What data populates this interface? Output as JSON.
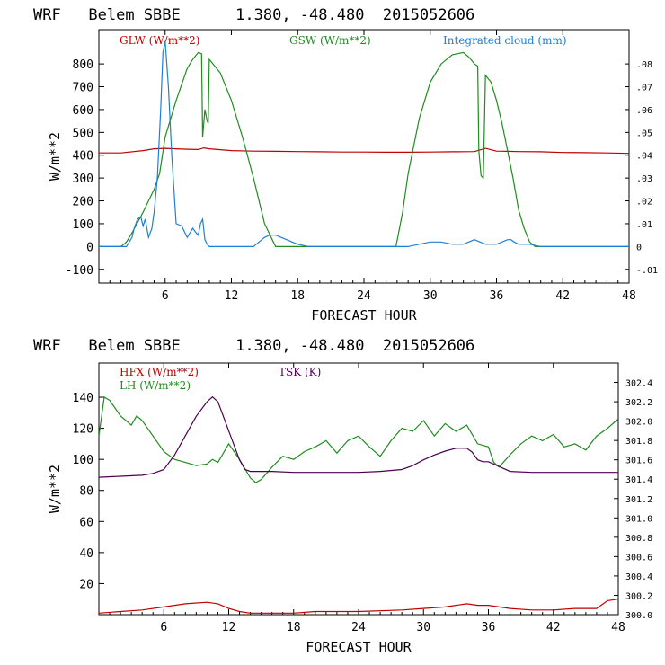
{
  "chart_data": [
    {
      "type": "line",
      "title": "WRF   Belem SBBE      1.380, -48.480  2015052606",
      "xlabel": "FORECAST HOUR",
      "ylabel": "W/m**2",
      "xlim": [
        0,
        48
      ],
      "ylim": [
        -160,
        950
      ],
      "x_ticks": [
        "6",
        "12",
        "18",
        "24",
        "30",
        "36",
        "42",
        "48"
      ],
      "y_ticks": [
        "-100",
        "0",
        "100",
        "200",
        "300",
        "400",
        "500",
        "600",
        "700",
        "800"
      ],
      "y2_ticks": [
        "-.01",
        "0",
        ".01",
        ".02",
        ".03",
        ".04",
        ".05",
        ".06",
        ".07",
        ".08"
      ],
      "y2lim": [
        -0.016,
        0.095
      ],
      "grid": false,
      "legend": "top",
      "series": [
        {
          "name": "GLW (W/m**2)",
          "color": "#c00000",
          "axis": "left",
          "x": [
            0,
            2,
            4,
            5,
            6,
            7,
            8,
            9,
            9.5,
            10,
            11,
            12,
            14,
            16,
            18,
            20,
            22,
            24,
            26,
            28,
            30,
            32,
            34,
            35,
            36,
            37,
            38,
            40,
            42,
            44,
            46,
            48
          ],
          "y": [
            410,
            410,
            420,
            428,
            430,
            428,
            426,
            425,
            432,
            428,
            424,
            420,
            418,
            417,
            416,
            415,
            414,
            414,
            413,
            413,
            414,
            415,
            416,
            430,
            418,
            417,
            416,
            415,
            412,
            411,
            410,
            408
          ]
        },
        {
          "name": "GSW (W/m**2)",
          "color": "#1e8c1e",
          "axis": "left",
          "x": [
            0,
            2,
            2.5,
            3,
            4,
            4.5,
            5,
            5.5,
            6,
            7,
            8,
            8.5,
            9,
            9.3,
            9.4,
            9.6,
            9.8,
            9.9,
            10,
            11,
            12,
            13,
            14,
            15,
            16,
            18,
            20,
            24,
            26,
            26.9,
            27.5,
            28,
            29,
            30,
            31,
            32,
            33,
            33.5,
            34,
            34.3,
            34.4,
            34.6,
            34.8,
            35,
            35.5,
            36,
            36.5,
            37,
            37.5,
            38,
            38.5,
            39,
            39.5,
            40,
            42,
            44,
            46,
            48
          ],
          "y": [
            0,
            0,
            20,
            60,
            150,
            200,
            250,
            320,
            480,
            640,
            780,
            820,
            850,
            845,
            480,
            600,
            550,
            540,
            820,
            760,
            640,
            480,
            300,
            100,
            0,
            0,
            0,
            0,
            0,
            0,
            150,
            320,
            560,
            720,
            800,
            840,
            850,
            830,
            800,
            790,
            420,
            310,
            300,
            750,
            720,
            640,
            540,
            420,
            300,
            160,
            80,
            20,
            0,
            0,
            0,
            0,
            0,
            0
          ]
        },
        {
          "name": "Integrated cloud (mm)",
          "color": "#1e7fd8",
          "axis": "right",
          "x": [
            0,
            2,
            2.5,
            3,
            3.2,
            3.5,
            3.8,
            4,
            4.2,
            4.5,
            4.8,
            5,
            5.3,
            5.6,
            5.8,
            6,
            6.3,
            6.6,
            7,
            7.5,
            8,
            8.5,
            8.8,
            9,
            9.2,
            9.4,
            9.6,
            9.8,
            10,
            12,
            14,
            14.5,
            15,
            15.5,
            16,
            16.5,
            17,
            17.5,
            18,
            19,
            20,
            24,
            28,
            29,
            30,
            31,
            32,
            33,
            34,
            35,
            36,
            36.5,
            37,
            37.3,
            37.6,
            38,
            39,
            40,
            42,
            44,
            46,
            48
          ],
          "y": [
            0,
            0,
            0,
            0.004,
            0.008,
            0.012,
            0.013,
            0.009,
            0.012,
            0.004,
            0.008,
            0.015,
            0.03,
            0.06,
            0.085,
            0.09,
            0.07,
            0.04,
            0.01,
            0.009,
            0.004,
            0.008,
            0.006,
            0.005,
            0.01,
            0.012,
            0.003,
            0.001,
            0,
            0,
            0,
            0.002,
            0.004,
            0.005,
            0.005,
            0.004,
            0.003,
            0.002,
            0.001,
            0,
            0,
            0,
            0,
            0.001,
            0.002,
            0.002,
            0.001,
            0.001,
            0.003,
            0.001,
            0.001,
            0.002,
            0.003,
            0.003,
            0.002,
            0.001,
            0.001,
            0,
            0,
            0,
            0,
            0
          ]
        }
      ]
    },
    {
      "type": "line",
      "title": "WRF   Belem SBBE      1.380, -48.480  2015052606",
      "xlabel": "FORECAST HOUR",
      "ylabel": "W/m**2",
      "xlim": [
        0,
        48
      ],
      "ylim": [
        0,
        162
      ],
      "x_ticks": [
        "6",
        "12",
        "18",
        "24",
        "30",
        "36",
        "42",
        "48"
      ],
      "y_ticks": [
        "20",
        "40",
        "60",
        "80",
        "100",
        "120",
        "140"
      ],
      "y2_ticks": [
        "300.0",
        "300.2",
        "300.4",
        "300.6",
        "300.8",
        "301.0",
        "301.2",
        "301.4",
        "301.6",
        "301.8",
        "302.0",
        "302.2",
        "302.4"
      ],
      "y2lim": [
        300.0,
        302.6
      ],
      "grid": false,
      "legend": "top",
      "series": [
        {
          "name": "HFX (W/m**2)",
          "color": "#c00000",
          "axis": "left",
          "x": [
            0,
            2,
            4,
            6,
            8,
            10,
            11,
            12,
            13,
            14,
            16,
            18,
            20,
            24,
            28,
            30,
            32,
            34,
            35,
            36,
            38,
            40,
            42,
            44,
            46,
            47,
            48
          ],
          "y": [
            1,
            2,
            3,
            5,
            7,
            8,
            7,
            4,
            2,
            1,
            1,
            1,
            2,
            2,
            3,
            4,
            5,
            7,
            6,
            6,
            4,
            3,
            3,
            4,
            4,
            9,
            10
          ],
          "lines": false
        },
        {
          "name": "LH (W/m**2)",
          "color": "#1e8c1e",
          "axis": "left",
          "x": [
            0,
            0.5,
            1,
            2,
            3,
            3.5,
            4,
            5,
            6,
            7,
            8,
            9,
            10,
            10.5,
            11,
            12,
            13,
            14,
            14.5,
            15,
            16,
            17,
            18,
            19,
            20,
            21,
            22,
            23,
            24,
            25,
            26,
            27,
            28,
            29,
            30,
            31,
            32,
            33,
            34,
            35,
            36,
            36.5,
            37,
            38,
            39,
            40,
            41,
            42,
            43,
            44,
            45,
            46,
            47,
            48
          ],
          "y": [
            115,
            140,
            138,
            128,
            122,
            128,
            125,
            115,
            105,
            100,
            98,
            96,
            97,
            100,
            98,
            110,
            100,
            88,
            85,
            87,
            95,
            102,
            100,
            105,
            108,
            112,
            104,
            112,
            115,
            108,
            102,
            112,
            120,
            118,
            125,
            115,
            123,
            118,
            122,
            110,
            108,
            98,
            95,
            103,
            110,
            115,
            112,
            116,
            108,
            110,
            106,
            115,
            120,
            126
          ]
        },
        {
          "name": "TSK (K)",
          "color": "#4b0050",
          "axis": "right",
          "x": [
            0,
            2,
            4,
            5,
            6,
            7,
            8,
            9,
            10,
            10.5,
            11,
            12,
            13,
            13.5,
            14,
            16,
            18,
            20,
            22,
            24,
            26,
            28,
            29,
            30,
            31,
            32,
            33,
            34,
            34.5,
            35,
            35.5,
            36,
            37,
            38,
            40,
            42,
            44,
            46,
            48
          ],
          "y": [
            301.42,
            301.43,
            301.44,
            301.46,
            301.5,
            301.65,
            301.85,
            302.05,
            302.2,
            302.25,
            302.2,
            301.9,
            301.6,
            301.5,
            301.48,
            301.48,
            301.47,
            301.47,
            301.47,
            301.47,
            301.48,
            301.5,
            301.54,
            301.6,
            301.65,
            301.69,
            301.72,
            301.72,
            301.68,
            301.6,
            301.58,
            301.58,
            301.53,
            301.48,
            301.47,
            301.47,
            301.47,
            301.47,
            301.47
          ]
        }
      ]
    }
  ]
}
